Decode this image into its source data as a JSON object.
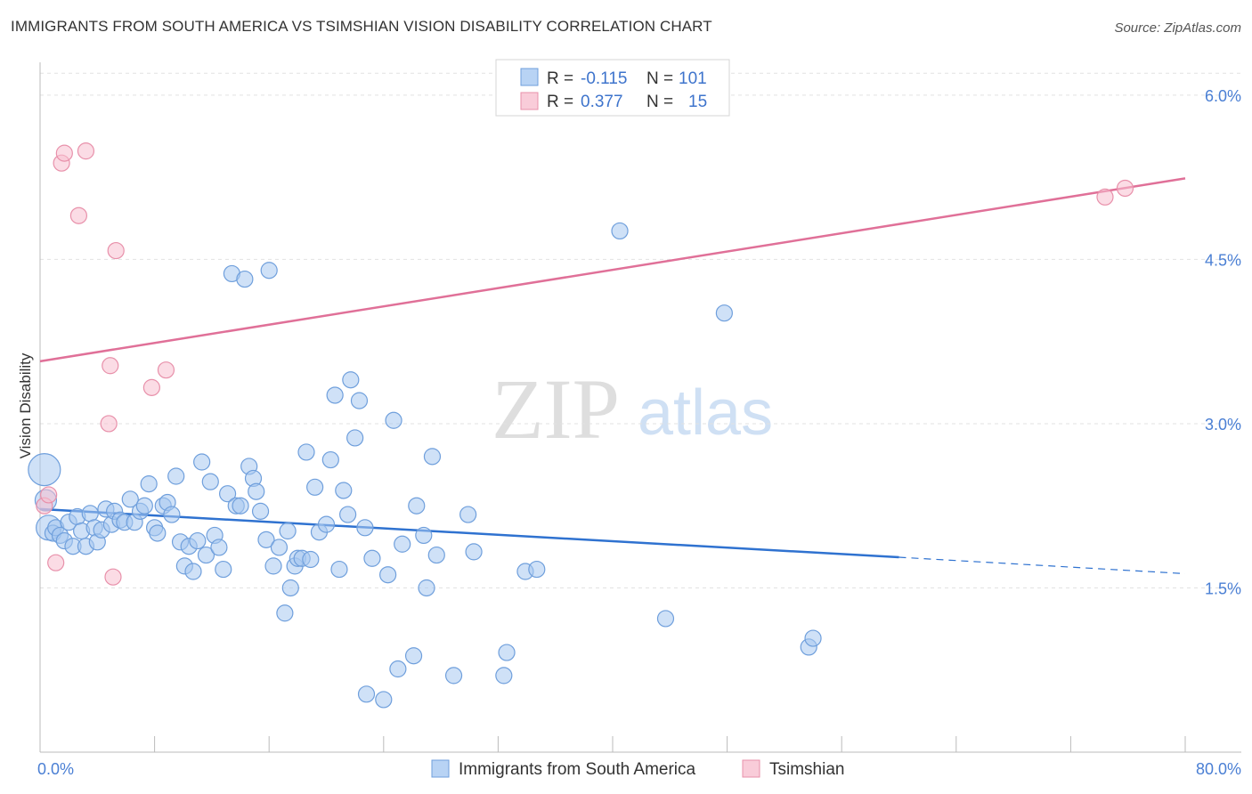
{
  "chart_data": {
    "type": "scatter",
    "title": "IMMIGRANTS FROM SOUTH AMERICA VS TSIMSHIAN VISION DISABILITY CORRELATION CHART",
    "source": "Source: ZipAtlas.com",
    "xlabel": "",
    "ylabel": "Vision Disability",
    "xlim": [
      0,
      80
    ],
    "ylim": [
      0,
      6.3
    ],
    "x_tick_labels": [
      "0.0%",
      "80.0%"
    ],
    "y_ticks": [
      1.5,
      3.0,
      4.5,
      6.0
    ],
    "y_tick_labels": [
      "1.5%",
      "3.0%",
      "4.5%",
      "6.0%"
    ],
    "watermark": {
      "zip": "ZIP",
      "atlas": "atlas"
    },
    "legend": {
      "rows": [
        {
          "r_label": "R =",
          "r_value": "-0.115",
          "n_label": "N =",
          "n_value": "101"
        },
        {
          "r_label": "R =",
          "r_value": "0.377",
          "n_label": "N =",
          "n_value": "15"
        }
      ]
    },
    "series": [
      {
        "name": "Immigrants from South America",
        "color": "#a8c8f0",
        "stroke": "#6f9fdc",
        "line_color": "#2f72d0",
        "trend": {
          "x0": 0,
          "y0": 2.22,
          "x1": 60,
          "y1": 1.78,
          "dash_to_x": 80,
          "dash_to_y": 1.63
        },
        "points": [
          [
            0.3,
            2.58,
            18
          ],
          [
            0.4,
            2.3,
            12
          ],
          [
            0.6,
            2.05,
            14
          ],
          [
            0.9,
            2.0,
            9
          ],
          [
            1.1,
            2.05,
            9
          ],
          [
            1.4,
            1.98,
            9
          ],
          [
            1.7,
            1.93,
            9
          ],
          [
            2.0,
            2.1,
            9
          ],
          [
            2.3,
            1.88,
            9
          ],
          [
            2.6,
            2.15,
            9
          ],
          [
            2.9,
            2.02,
            9
          ],
          [
            3.2,
            1.88,
            9
          ],
          [
            3.5,
            2.18,
            9
          ],
          [
            3.8,
            2.05,
            9
          ],
          [
            4.0,
            1.92,
            9
          ],
          [
            4.3,
            2.03,
            9
          ],
          [
            4.6,
            2.22,
            9
          ],
          [
            5.0,
            2.08,
            9
          ],
          [
            5.2,
            2.2,
            9
          ],
          [
            5.6,
            2.12,
            9
          ],
          [
            5.9,
            2.1,
            9
          ],
          [
            6.3,
            2.31,
            9
          ],
          [
            6.6,
            2.1,
            9
          ],
          [
            7.0,
            2.2,
            9
          ],
          [
            7.3,
            2.25,
            9
          ],
          [
            7.6,
            2.45,
            9
          ],
          [
            8.0,
            2.05,
            9
          ],
          [
            8.2,
            2.0,
            9
          ],
          [
            8.6,
            2.25,
            9
          ],
          [
            8.9,
            2.28,
            9
          ],
          [
            9.2,
            2.17,
            9
          ],
          [
            9.5,
            2.52,
            9
          ],
          [
            9.8,
            1.92,
            9
          ],
          [
            10.1,
            1.7,
            9
          ],
          [
            10.4,
            1.88,
            9
          ],
          [
            10.7,
            1.65,
            9
          ],
          [
            11.0,
            1.93,
            9
          ],
          [
            11.3,
            2.65,
            9
          ],
          [
            11.6,
            1.8,
            9
          ],
          [
            11.9,
            2.47,
            9
          ],
          [
            12.2,
            1.98,
            9
          ],
          [
            12.5,
            1.87,
            9
          ],
          [
            12.8,
            1.67,
            9
          ],
          [
            13.1,
            2.36,
            9
          ],
          [
            13.4,
            4.37,
            9
          ],
          [
            13.7,
            2.25,
            9
          ],
          [
            14.0,
            2.25,
            9
          ],
          [
            14.3,
            4.32,
            9
          ],
          [
            14.6,
            2.61,
            9
          ],
          [
            14.9,
            2.5,
            9
          ],
          [
            15.1,
            2.38,
            9
          ],
          [
            15.4,
            2.2,
            9
          ],
          [
            15.8,
            1.94,
            9
          ],
          [
            16.0,
            4.4,
            9
          ],
          [
            16.3,
            1.7,
            9
          ],
          [
            16.7,
            1.87,
            9
          ],
          [
            17.1,
            1.27,
            9
          ],
          [
            17.3,
            2.02,
            9
          ],
          [
            17.5,
            1.5,
            9
          ],
          [
            17.8,
            1.7,
            9
          ],
          [
            18.0,
            1.77,
            9
          ],
          [
            18.3,
            1.77,
            9
          ],
          [
            18.6,
            2.74,
            9
          ],
          [
            18.9,
            1.76,
            9
          ],
          [
            19.2,
            2.42,
            9
          ],
          [
            19.5,
            2.01,
            9
          ],
          [
            20.0,
            2.08,
            9
          ],
          [
            20.3,
            2.67,
            9
          ],
          [
            20.6,
            3.26,
            9
          ],
          [
            20.9,
            1.67,
            9
          ],
          [
            21.2,
            2.39,
            9
          ],
          [
            21.5,
            2.17,
            9
          ],
          [
            21.7,
            3.4,
            9
          ],
          [
            22.0,
            2.87,
            9
          ],
          [
            22.3,
            3.21,
            9
          ],
          [
            22.7,
            2.05,
            9
          ],
          [
            22.8,
            0.53,
            9
          ],
          [
            23.2,
            1.77,
            9
          ],
          [
            24.0,
            0.48,
            9
          ],
          [
            24.3,
            1.62,
            9
          ],
          [
            24.7,
            3.03,
            9
          ],
          [
            25.0,
            0.76,
            9
          ],
          [
            25.3,
            1.9,
            9
          ],
          [
            26.1,
            0.88,
            9
          ],
          [
            26.3,
            2.25,
            9
          ],
          [
            26.8,
            1.98,
            9
          ],
          [
            27.0,
            1.5,
            9
          ],
          [
            27.4,
            2.7,
            9
          ],
          [
            27.7,
            1.8,
            9
          ],
          [
            28.9,
            0.7,
            9
          ],
          [
            29.9,
            2.17,
            9
          ],
          [
            30.3,
            1.83,
            9
          ],
          [
            32.4,
            0.7,
            9
          ],
          [
            32.6,
            0.91,
            9
          ],
          [
            33.9,
            1.65,
            9
          ],
          [
            34.7,
            1.67,
            9
          ],
          [
            43.7,
            1.22,
            9
          ],
          [
            40.5,
            4.76,
            9
          ],
          [
            47.8,
            4.01,
            9
          ],
          [
            53.7,
            0.96,
            9
          ],
          [
            54.0,
            1.04,
            9
          ]
        ]
      },
      {
        "name": "Tsimshian",
        "color": "#f8c0d0",
        "stroke": "#e890aa",
        "line_color": "#e07098",
        "trend": {
          "x0": 0,
          "y0": 3.57,
          "x1": 80,
          "y1": 5.24
        },
        "points": [
          [
            0.3,
            2.25,
            9
          ],
          [
            0.6,
            2.35,
            9
          ],
          [
            1.1,
            1.73,
            9
          ],
          [
            1.5,
            5.38,
            9
          ],
          [
            1.7,
            5.47,
            9
          ],
          [
            2.7,
            4.9,
            9
          ],
          [
            3.2,
            5.49,
            9
          ],
          [
            4.8,
            3.0,
            9
          ],
          [
            5.1,
            1.6,
            9
          ],
          [
            4.9,
            3.53,
            9
          ],
          [
            5.3,
            4.58,
            9
          ],
          [
            7.8,
            3.33,
            9
          ],
          [
            8.8,
            3.49,
            9
          ],
          [
            74.4,
            5.07,
            9
          ],
          [
            75.8,
            5.15,
            9
          ]
        ]
      }
    ]
  }
}
